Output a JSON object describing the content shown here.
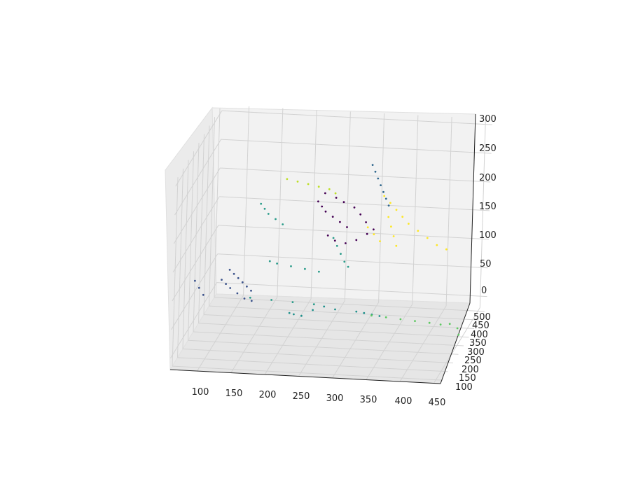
{
  "chart_data": {
    "type": "scatter",
    "projection": "3d",
    "title": "",
    "xlabel": "",
    "ylabel": "",
    "zlabel": "",
    "xlim": [
      60,
      460
    ],
    "ylim": [
      80,
      520
    ],
    "zlim": [
      -20,
      310
    ],
    "x_ticks": [
      "100",
      "150",
      "200",
      "250",
      "300",
      "350",
      "400",
      "450"
    ],
    "y_ticks": [
      "100",
      "150",
      "200",
      "250",
      "300",
      "350",
      "400",
      "450",
      "500"
    ],
    "z_ticks": [
      "0",
      "50",
      "100",
      "150",
      "200",
      "250",
      "300"
    ],
    "grid": true,
    "colormap": "viridis",
    "clusters": [
      {
        "color": "#440154",
        "points": [
          [
            230,
            360,
            200
          ],
          [
            235,
            365,
            190
          ],
          [
            240,
            370,
            180
          ],
          [
            250,
            375,
            170
          ],
          [
            260,
            380,
            160
          ],
          [
            270,
            385,
            150
          ],
          [
            240,
            360,
            215
          ],
          [
            255,
            370,
            205
          ],
          [
            265,
            380,
            195
          ],
          [
            280,
            385,
            185
          ],
          [
            290,
            380,
            175
          ],
          [
            300,
            370,
            165
          ],
          [
            245,
            365,
            140
          ],
          [
            255,
            370,
            130
          ],
          [
            270,
            375,
            125
          ],
          [
            285,
            380,
            130
          ],
          [
            300,
            385,
            140
          ],
          [
            310,
            380,
            150
          ]
        ]
      },
      {
        "color": "#3b528b",
        "points": [
          [
            120,
            240,
            110
          ],
          [
            125,
            250,
            100
          ],
          [
            130,
            260,
            90
          ],
          [
            135,
            270,
            80
          ],
          [
            140,
            280,
            70
          ],
          [
            145,
            290,
            60
          ],
          [
            110,
            230,
            95
          ],
          [
            115,
            240,
            85
          ],
          [
            120,
            250,
            75
          ],
          [
            130,
            255,
            65
          ],
          [
            140,
            260,
            55
          ],
          [
            150,
            265,
            50
          ],
          [
            75,
            200,
            100
          ],
          [
            80,
            210,
            85
          ],
          [
            85,
            220,
            70
          ]
        ]
      },
      {
        "color": "#31688e",
        "points": [
          [
            300,
            420,
            250
          ],
          [
            305,
            415,
            240
          ],
          [
            310,
            410,
            230
          ],
          [
            315,
            405,
            220
          ],
          [
            320,
            400,
            210
          ],
          [
            325,
            395,
            200
          ],
          [
            330,
            390,
            190
          ]
        ]
      },
      {
        "color": "#21918c",
        "points": [
          [
            210,
            240,
            40
          ],
          [
            215,
            250,
            35
          ],
          [
            225,
            260,
            30
          ],
          [
            240,
            270,
            38
          ],
          [
            255,
            280,
            42
          ],
          [
            270,
            290,
            35
          ],
          [
            300,
            300,
            30
          ],
          [
            310,
            310,
            25
          ],
          [
            320,
            320,
            20
          ],
          [
            330,
            330,
            15
          ]
        ]
      },
      {
        "color": "#2a9c8a",
        "points": [
          [
            150,
            330,
            200
          ],
          [
            155,
            335,
            190
          ],
          [
            160,
            340,
            180
          ],
          [
            170,
            345,
            170
          ],
          [
            180,
            350,
            160
          ],
          [
            260,
            320,
            150
          ],
          [
            265,
            325,
            135
          ],
          [
            270,
            330,
            120
          ],
          [
            275,
            335,
            105
          ],
          [
            280,
            340,
            95
          ],
          [
            170,
            300,
            110
          ],
          [
            180,
            305,
            105
          ],
          [
            200,
            310,
            100
          ],
          [
            220,
            315,
            95
          ],
          [
            240,
            320,
            90
          ],
          [
            150,
            250,
            60
          ],
          [
            180,
            260,
            55
          ],
          [
            210,
            270,
            50
          ],
          [
            240,
            280,
            45
          ]
        ]
      },
      {
        "color": "#5ec962",
        "points": [
          [
            330,
            250,
            40
          ],
          [
            350,
            260,
            35
          ],
          [
            370,
            270,
            30
          ],
          [
            390,
            280,
            25
          ],
          [
            410,
            290,
            20
          ],
          [
            425,
            300,
            15
          ],
          [
            440,
            290,
            20
          ],
          [
            450,
            300,
            10
          ],
          [
            455,
            280,
            5
          ]
        ]
      },
      {
        "color": "#bddf26",
        "points": [
          [
            180,
            380,
            230
          ],
          [
            195,
            385,
            225
          ],
          [
            210,
            390,
            220
          ],
          [
            225,
            395,
            215
          ],
          [
            240,
            400,
            210
          ],
          [
            250,
            395,
            205
          ]
        ]
      },
      {
        "color": "#fde725",
        "points": [
          [
            320,
            410,
            200
          ],
          [
            330,
            405,
            190
          ],
          [
            340,
            400,
            180
          ],
          [
            350,
            395,
            170
          ],
          [
            360,
            390,
            160
          ],
          [
            375,
            385,
            150
          ],
          [
            390,
            380,
            140
          ],
          [
            405,
            375,
            130
          ],
          [
            420,
            370,
            125
          ],
          [
            330,
            390,
            170
          ],
          [
            335,
            385,
            155
          ],
          [
            340,
            380,
            140
          ],
          [
            345,
            375,
            125
          ],
          [
            300,
            390,
            150
          ],
          [
            310,
            385,
            140
          ],
          [
            320,
            380,
            130
          ]
        ]
      }
    ]
  }
}
